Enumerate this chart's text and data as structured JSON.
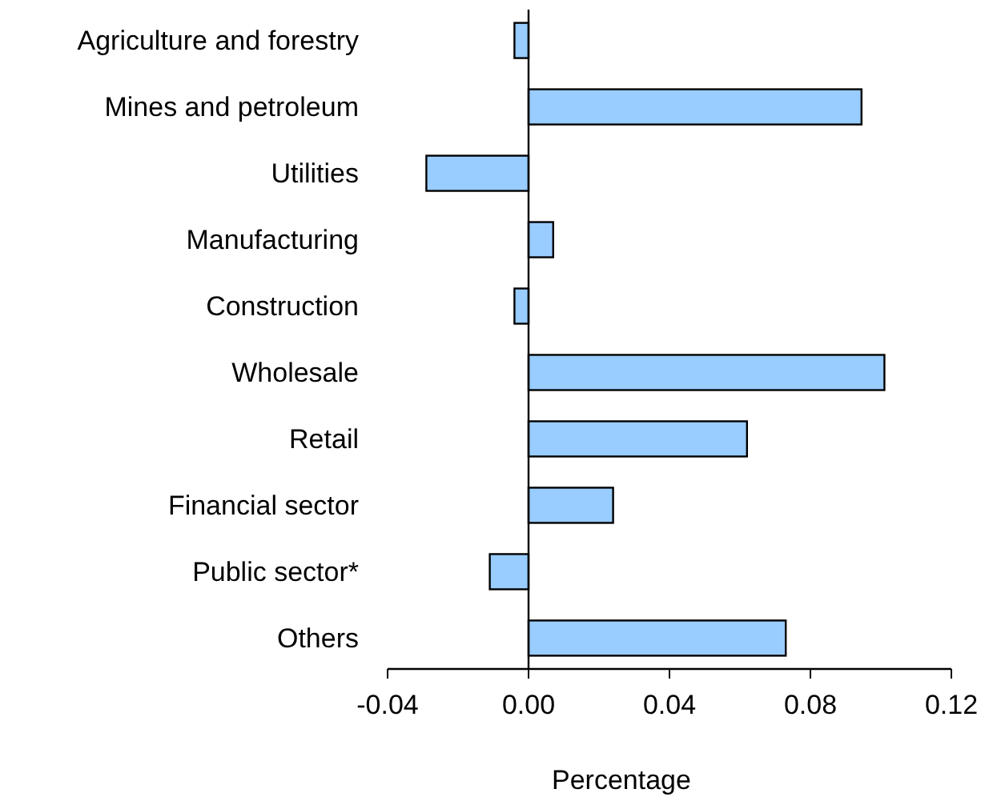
{
  "chart_data": {
    "type": "bar",
    "orientation": "horizontal",
    "xlabel": "Percentage",
    "categories": [
      "Agriculture and forestry",
      "Mines and petroleum",
      "Utilities",
      "Manufacturing",
      "Construction",
      "Wholesale",
      "Retail",
      "Financial sector",
      "Public sector*",
      "Others"
    ],
    "values": [
      -0.004,
      0.0945,
      -0.029,
      0.007,
      -0.004,
      0.101,
      0.062,
      0.024,
      -0.011,
      0.073
    ],
    "color": "#99ccff",
    "xlim": [
      -0.04,
      0.12
    ],
    "xticks": [
      -0.04,
      {
        "value": 0,
        "label": "0.00"
      },
      0.04,
      0.08,
      0.12
    ]
  }
}
